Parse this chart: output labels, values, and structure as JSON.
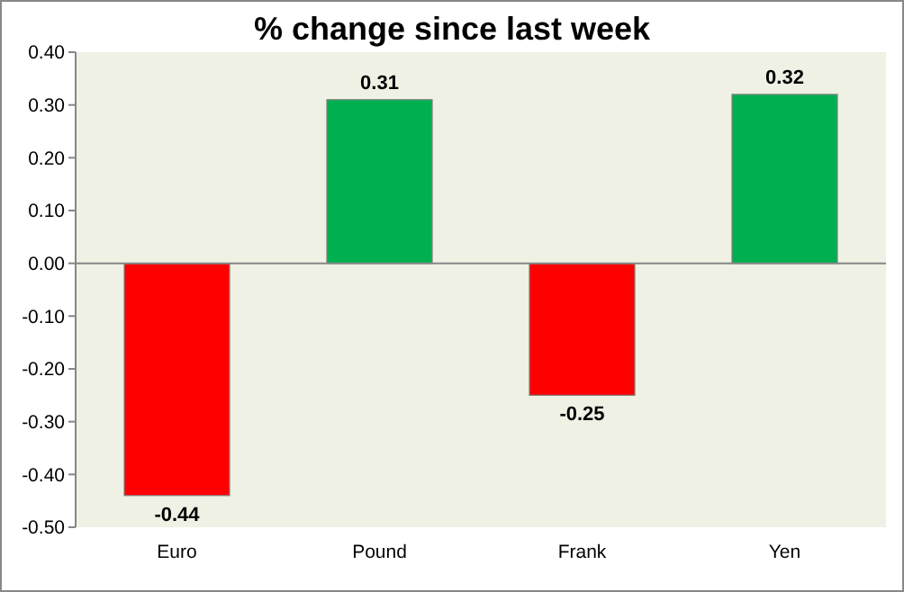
{
  "chart_data": {
    "type": "bar",
    "title": "% change since last week",
    "categories": [
      "Euro",
      "Pound",
      "Frank",
      "Yen"
    ],
    "values": [
      -0.44,
      0.31,
      -0.25,
      0.32
    ],
    "colors": [
      "#ff0000",
      "#00b050",
      "#ff0000",
      "#00b050"
    ],
    "ylim": [
      -0.5,
      0.4
    ],
    "yticks": [
      {
        "value": 0.4,
        "label": "0.40"
      },
      {
        "value": 0.3,
        "label": "0.30"
      },
      {
        "value": 0.2,
        "label": "0.20"
      },
      {
        "value": 0.1,
        "label": "0.10"
      },
      {
        "value": 0,
        "label": "0.00"
      },
      {
        "value": -0.1,
        "label": "-0.10"
      },
      {
        "value": -0.2,
        "label": "-0.20"
      },
      {
        "value": -0.3,
        "label": "-0.30"
      },
      {
        "value": -0.4,
        "label": "-0.40"
      },
      {
        "value": -0.5,
        "label": "-0.50"
      }
    ],
    "data_labels": true
  }
}
